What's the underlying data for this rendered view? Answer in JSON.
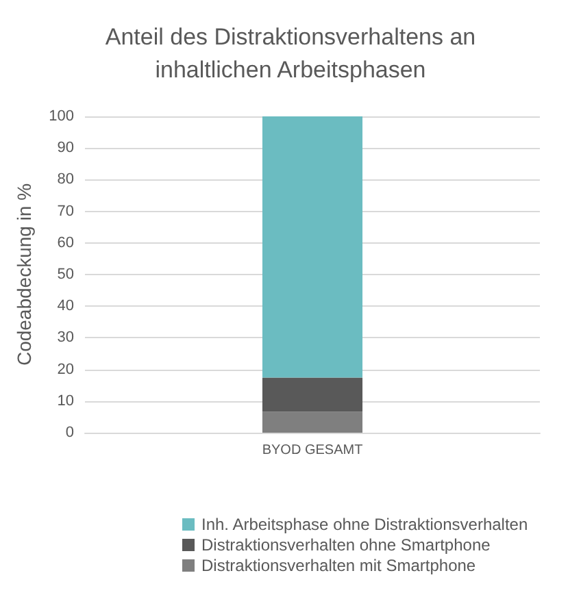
{
  "chart_data": {
    "type": "bar",
    "stacked": true,
    "title": "Anteil des Distraktionsverhaltens an\ninhaltlichen Arbeitsphasen",
    "ylabel": "Codeabdeckung in %",
    "categories": [
      "BYOD GESAMT"
    ],
    "series": [
      {
        "name": "Distraktionsverhalten mit Smartphone",
        "color": "#7f7f7f",
        "values": [
          6.6
        ]
      },
      {
        "name": "Distraktionsverhalten ohne Smartphone",
        "color": "#595959",
        "values": [
          10.8
        ]
      },
      {
        "name": "Inh. Arbeitsphase ohne Distraktionsverhalten",
        "color": "#6bbcc1",
        "values": [
          82.6
        ]
      }
    ],
    "ylim": [
      0,
      100
    ],
    "yticks": [
      0,
      10,
      20,
      30,
      40,
      50,
      60,
      70,
      80,
      90,
      100
    ],
    "grid": "y",
    "legend": "bottom"
  }
}
